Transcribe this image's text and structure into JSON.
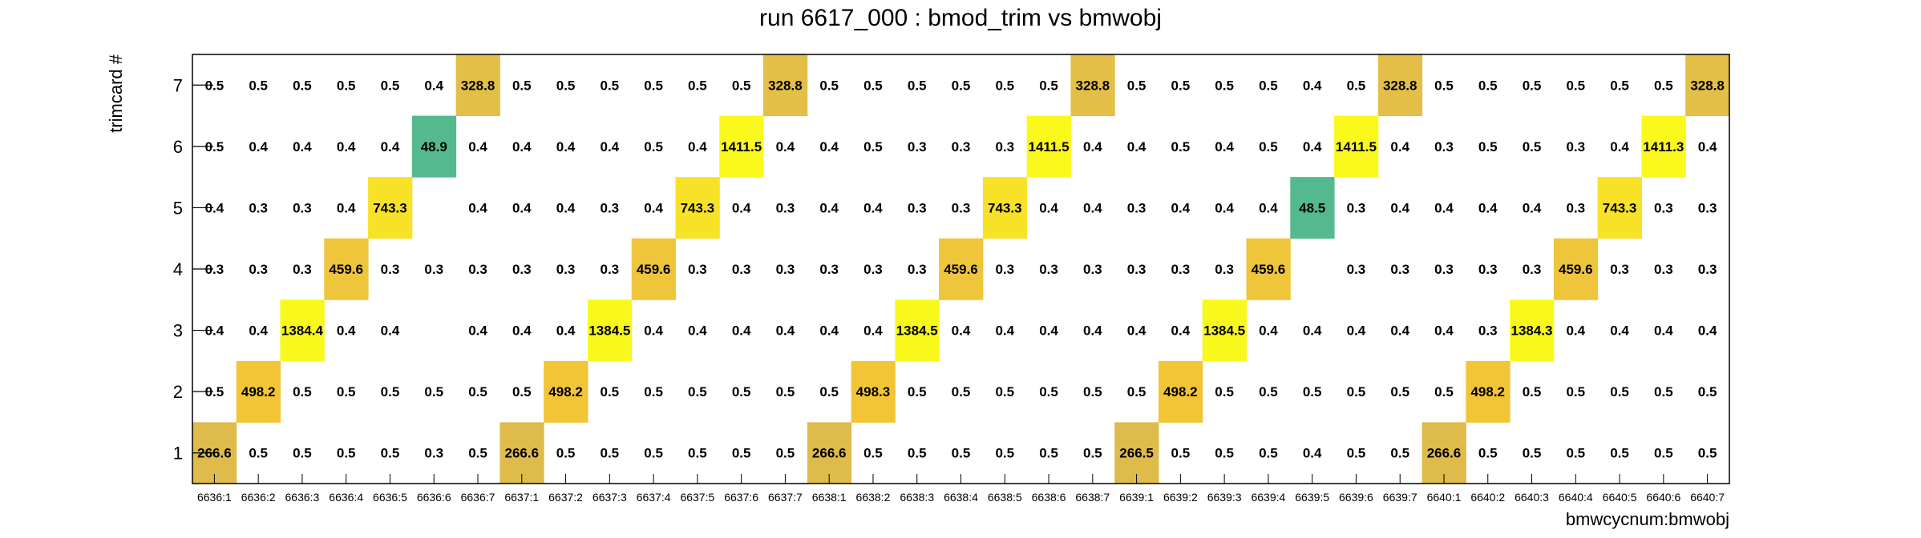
{
  "chart_data": {
    "type": "heatmap",
    "title": "run 6617_000 : bmod_trim vs bmwobj",
    "xlabel": "bmwcycnum:bmwobj",
    "ylabel": "trimcard #",
    "categories": [
      "6636:1",
      "6636:2",
      "6636:3",
      "6636:4",
      "6636:5",
      "6636:6",
      "6636:7",
      "6637:1",
      "6637:2",
      "6637:3",
      "6637:4",
      "6637:5",
      "6637:6",
      "6637:7",
      "6638:1",
      "6638:2",
      "6638:3",
      "6638:4",
      "6638:5",
      "6638:6",
      "6638:7",
      "6639:1",
      "6639:2",
      "6639:3",
      "6639:4",
      "6639:5",
      "6639:6",
      "6639:7",
      "6640:1",
      "6640:2",
      "6640:3",
      "6640:4",
      "6640:5",
      "6640:6",
      "6640:7"
    ],
    "y_categories": [
      "1",
      "2",
      "3",
      "4",
      "5",
      "6",
      "7"
    ],
    "rows": [
      {
        "y": "1",
        "values": [
          266.6,
          0.5,
          0.5,
          0.5,
          0.5,
          0.3,
          0.5,
          266.6,
          0.5,
          0.5,
          0.5,
          0.5,
          0.5,
          0.5,
          266.6,
          0.5,
          0.5,
          0.5,
          0.5,
          0.5,
          0.5,
          266.5,
          0.5,
          0.5,
          0.5,
          0.4,
          0.5,
          0.5,
          266.6,
          0.5,
          0.5,
          0.5,
          0.5,
          0.5,
          0.5
        ]
      },
      {
        "y": "2",
        "values": [
          0.5,
          498.2,
          0.5,
          0.5,
          0.5,
          0.5,
          0.5,
          0.5,
          498.2,
          0.5,
          0.5,
          0.5,
          0.5,
          0.5,
          0.5,
          498.3,
          0.5,
          0.5,
          0.5,
          0.5,
          0.5,
          0.5,
          498.2,
          0.5,
          0.5,
          0.5,
          0.5,
          0.5,
          0.5,
          498.2,
          0.5,
          0.5,
          0.5,
          0.5,
          0.5
        ]
      },
      {
        "y": "3",
        "values": [
          0.4,
          0.4,
          1384.4,
          0.4,
          0.4,
          null,
          0.4,
          0.4,
          0.4,
          1384.5,
          0.4,
          0.4,
          0.4,
          0.4,
          0.4,
          0.4,
          1384.5,
          0.4,
          0.4,
          0.4,
          0.4,
          0.4,
          0.4,
          1384.5,
          0.4,
          0.4,
          0.4,
          0.4,
          0.4,
          0.3,
          1384.3,
          0.4,
          0.4,
          0.4,
          0.4
        ]
      },
      {
        "y": "4",
        "values": [
          0.3,
          0.3,
          0.3,
          459.6,
          0.3,
          0.3,
          0.3,
          0.3,
          0.3,
          0.3,
          459.6,
          0.3,
          0.3,
          0.3,
          0.3,
          0.3,
          0.3,
          459.6,
          0.3,
          0.3,
          0.3,
          0.3,
          0.3,
          0.3,
          459.6,
          null,
          0.3,
          0.3,
          0.3,
          0.3,
          0.3,
          459.6,
          0.3,
          0.3,
          0.3
        ]
      },
      {
        "y": "5",
        "values": [
          0.4,
          0.3,
          0.3,
          0.4,
          743.3,
          null,
          0.4,
          0.4,
          0.4,
          0.3,
          0.4,
          743.3,
          0.4,
          0.3,
          0.4,
          0.4,
          0.3,
          0.3,
          743.3,
          0.4,
          0.4,
          0.3,
          0.4,
          0.4,
          0.4,
          48.5,
          0.3,
          0.4,
          0.4,
          0.4,
          0.4,
          0.3,
          743.3,
          0.3,
          0.3
        ]
      },
      {
        "y": "6",
        "values": [
          0.5,
          0.4,
          0.4,
          0.4,
          0.4,
          48.9,
          0.4,
          0.4,
          0.4,
          0.4,
          0.5,
          0.4,
          1411.5,
          0.4,
          0.4,
          0.5,
          0.3,
          0.3,
          0.3,
          1411.5,
          0.4,
          0.4,
          0.5,
          0.4,
          0.5,
          0.4,
          1411.5,
          0.4,
          0.3,
          0.5,
          0.5,
          0.3,
          0.4,
          1411.3,
          0.4
        ]
      },
      {
        "y": "7",
        "values": [
          0.5,
          0.5,
          0.5,
          0.5,
          0.5,
          0.4,
          328.8,
          0.5,
          0.5,
          0.5,
          0.5,
          0.5,
          0.5,
          328.8,
          0.5,
          0.5,
          0.5,
          0.5,
          0.5,
          0.5,
          328.8,
          0.5,
          0.5,
          0.5,
          0.5,
          0.4,
          0.5,
          328.8,
          0.5,
          0.5,
          0.5,
          0.5,
          0.5,
          0.5,
          328.8
        ]
      }
    ],
    "cell_colors": {
      "266.5": "#dfbb4b",
      "266.6": "#dfbb4b",
      "328.8": "#e4bf47",
      "459.6": "#efc53b",
      "498.2": "#f2c537",
      "498.3": "#f2c537",
      "743.3": "#f7e228",
      "1384.3": "#f9f81c",
      "1384.4": "#f9f81c",
      "1384.5": "#f9f81c",
      "1411.3": "#fbf81c",
      "1411.5": "#fbf81c",
      "48.5": "#54b98e",
      "48.9": "#54b98e"
    },
    "grid": false,
    "legend": "none"
  }
}
